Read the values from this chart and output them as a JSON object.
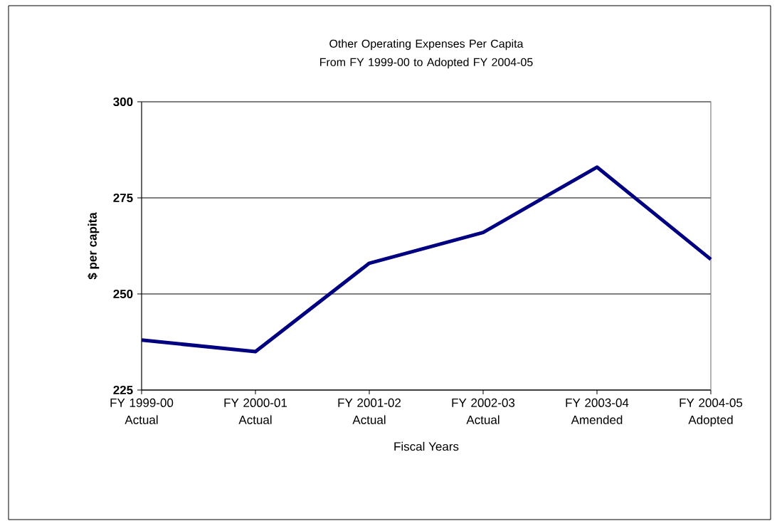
{
  "chart_data": {
    "type": "line",
    "title": "Other Operating Expenses Per Capita From FY 1999-00 to Adopted FY 2004-05",
    "xlabel": "Fiscal Years",
    "ylabel": "$ per capita",
    "categories": [
      "FY 1999-00 Actual",
      "FY 2000-01 Actual",
      "FY 2001-02 Actual",
      "FY 2002-03 Actual",
      "FY 2003-04 Amended",
      "FY 2004-05 Adopted"
    ],
    "series": [
      {
        "color": "#000080",
        "values": [
          238,
          235,
          258,
          266,
          283,
          259
        ]
      }
    ],
    "ylim": [
      225,
      300
    ],
    "yticks": [
      225,
      250,
      275,
      300
    ],
    "grid": "y",
    "marker": "none",
    "line_style": "solid"
  }
}
